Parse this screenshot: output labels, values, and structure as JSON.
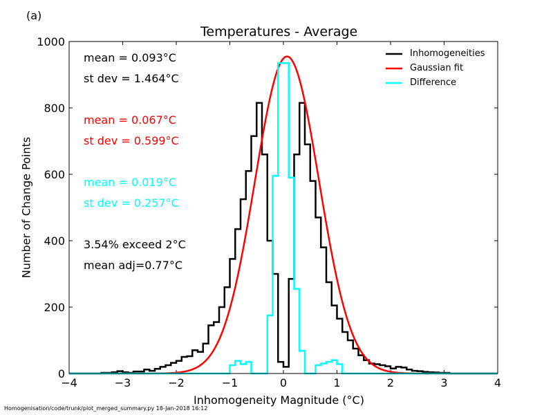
{
  "panel_label": "(a)",
  "footer": "Homogenisation/code/trunk/plot_merged_summary.py   18-Jan-2018 16:12",
  "colors": {
    "inhomogeneities": "#000000",
    "gaussian": "#ff0000",
    "difference": "#00ffff"
  },
  "stats": {
    "black": {
      "mean": "mean =  0.093°C",
      "sd": "st dev =  1.464°C"
    },
    "red": {
      "mean": "mean =  0.067°C",
      "sd": "st dev =  0.599°C"
    },
    "cyan": {
      "mean": "mean =  0.019°C",
      "sd": "st dev =  0.257°C"
    },
    "exceed": "3.54% exceed 2°C",
    "mean_adj": "mean adj=0.77°C"
  },
  "chart_data": {
    "type": "line",
    "title": "Temperatures - Average",
    "xlabel": "Inhomogeneity Magnitude (°C)",
    "ylabel": "Number of Change Points",
    "xlim": [
      -4,
      4
    ],
    "ylim": [
      0,
      1000
    ],
    "x_ticks": [
      "−4",
      "−3",
      "−2",
      "−1",
      "0",
      "1",
      "2",
      "3",
      "4"
    ],
    "y_ticks": [
      "0",
      "200",
      "400",
      "600",
      "800",
      "1000"
    ],
    "legend_position": "top-right",
    "bin_edges": [
      -4.0,
      -3.9,
      -3.8,
      -3.7,
      -3.6,
      -3.5,
      -3.4,
      -3.3,
      -3.2,
      -3.1,
      -3.0,
      -2.9,
      -2.8,
      -2.7,
      -2.6,
      -2.5,
      -2.4,
      -2.3,
      -2.2,
      -2.1,
      -2.0,
      -1.9,
      -1.8,
      -1.7,
      -1.6,
      -1.5,
      -1.4,
      -1.3,
      -1.2,
      -1.1,
      -1.0,
      -0.9,
      -0.8,
      -0.7,
      -0.6,
      -0.5,
      -0.4,
      -0.3,
      -0.2,
      -0.1,
      0.0,
      0.1,
      0.2,
      0.3,
      0.4,
      0.5,
      0.6,
      0.7,
      0.8,
      0.9,
      1.0,
      1.1,
      1.2,
      1.3,
      1.4,
      1.5,
      1.6,
      1.7,
      1.8,
      1.9,
      2.0,
      2.1,
      2.2,
      2.3,
      2.4,
      2.5,
      2.6,
      2.7,
      2.8,
      2.9,
      3.0,
      3.1,
      3.2,
      3.3,
      3.4,
      3.5,
      3.6,
      3.7,
      3.8,
      3.9,
      4.0
    ],
    "series": [
      {
        "name": "Inhomogeneities",
        "kind": "step",
        "values": [
          0,
          0,
          0,
          0,
          0,
          0,
          2,
          2,
          4,
          7,
          4,
          2,
          6,
          6,
          12,
          8,
          14,
          20,
          25,
          32,
          38,
          50,
          52,
          70,
          65,
          90,
          145,
          155,
          200,
          260,
          345,
          435,
          525,
          610,
          715,
          815,
          660,
          400,
          300,
          35,
          20,
          285,
          660,
          815,
          690,
          580,
          470,
          380,
          275,
          205,
          165,
          125,
          100,
          75,
          55,
          40,
          30,
          28,
          25,
          22,
          15,
          20,
          18,
          12,
          8,
          7,
          5,
          4,
          3,
          2,
          2,
          0,
          0,
          0,
          0,
          0,
          0,
          0,
          0,
          0
        ]
      },
      {
        "name": "Gaussian fit",
        "kind": "curve",
        "mean": 0.067,
        "sd": 0.599,
        "peak": 955
      },
      {
        "name": "Difference",
        "kind": "step",
        "values": [
          0,
          0,
          0,
          0,
          0,
          0,
          0,
          0,
          0,
          0,
          0,
          0,
          0,
          0,
          0,
          0,
          0,
          0,
          0,
          0,
          0,
          0,
          0,
          0,
          0,
          0,
          0,
          0,
          0,
          0,
          25,
          38,
          28,
          35,
          0,
          0,
          0,
          175,
          595,
          935,
          935,
          590,
          255,
          68,
          0,
          0,
          25,
          30,
          35,
          40,
          28,
          0,
          0,
          0,
          0,
          0,
          0,
          0,
          0,
          0,
          0,
          0,
          0,
          0,
          0,
          0,
          0,
          0,
          0,
          0,
          0,
          0,
          0,
          0,
          0,
          0,
          0,
          0,
          0,
          0
        ]
      }
    ]
  }
}
